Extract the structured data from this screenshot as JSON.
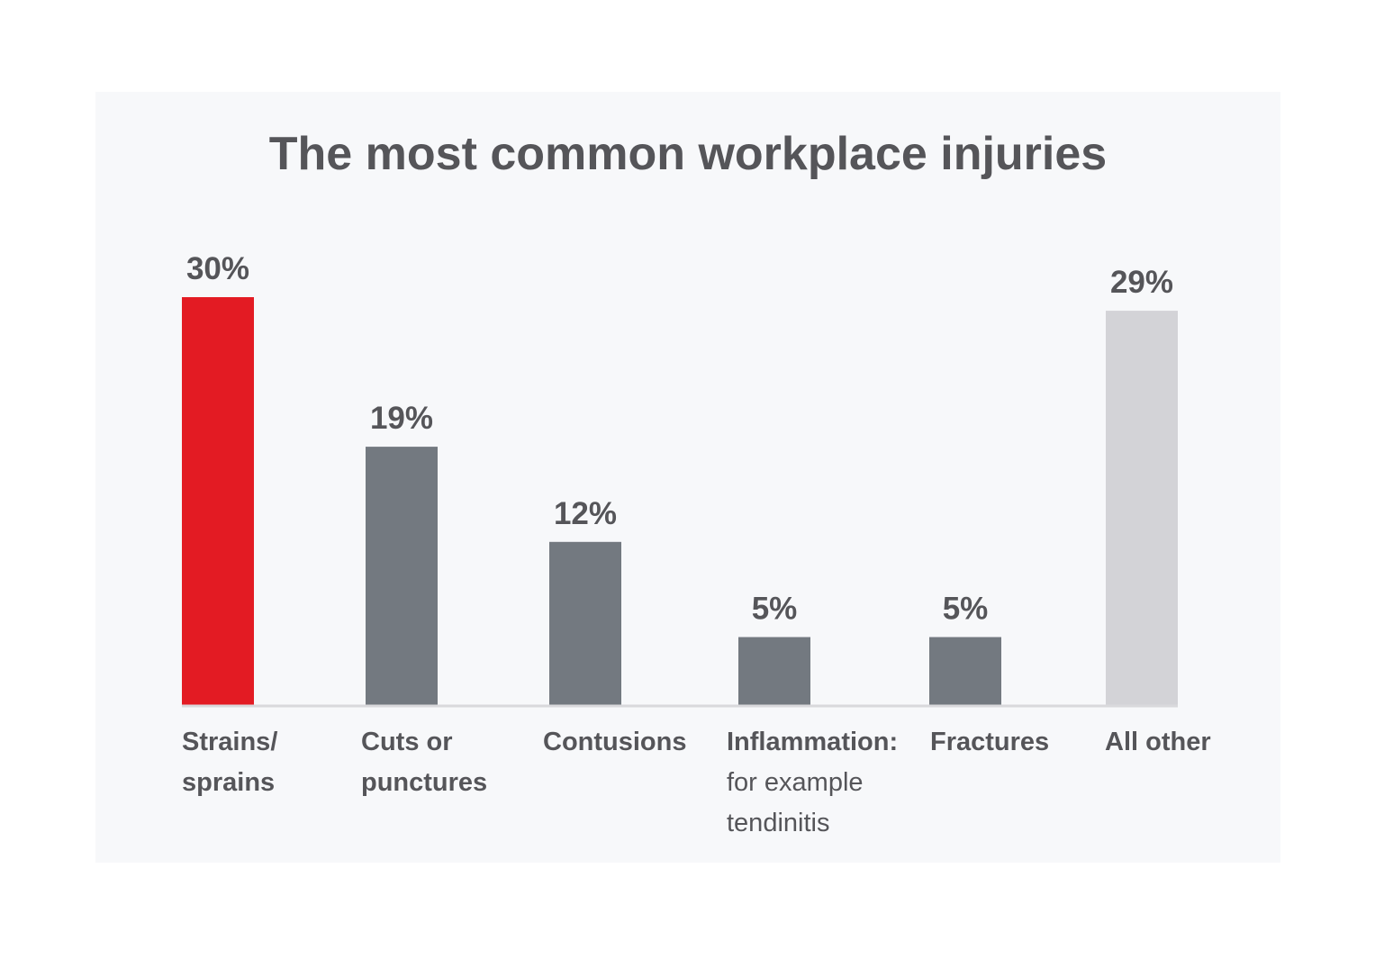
{
  "chart_data": {
    "type": "bar",
    "title": "The most common workplace injuries",
    "xlabel": "",
    "ylabel": "",
    "ylim": [
      0,
      30
    ],
    "grid": false,
    "legend": "none",
    "categories": [
      {
        "lines": [
          "Strains/",
          "sprains"
        ],
        "sublines": []
      },
      {
        "lines": [
          "Cuts or",
          "punctures"
        ],
        "sublines": []
      },
      {
        "lines": [
          "Contusions"
        ],
        "sublines": []
      },
      {
        "lines": [
          "Inflammation:"
        ],
        "sublines": [
          "for example",
          "tendinitis"
        ]
      },
      {
        "lines": [
          "Fractures"
        ],
        "sublines": []
      },
      {
        "lines": [
          "All other"
        ],
        "sublines": []
      }
    ],
    "values": [
      30,
      19,
      12,
      5,
      5,
      29
    ],
    "value_labels": [
      "30%",
      "19%",
      "12%",
      "5%",
      "5%",
      "29%"
    ],
    "colors": [
      "#e31b23",
      "#737980",
      "#737980",
      "#737980",
      "#737980",
      "#d3d3d7"
    ],
    "baseline_color": "#d9d9dc",
    "text_color": "#555559",
    "background": "#f7f8fa"
  }
}
